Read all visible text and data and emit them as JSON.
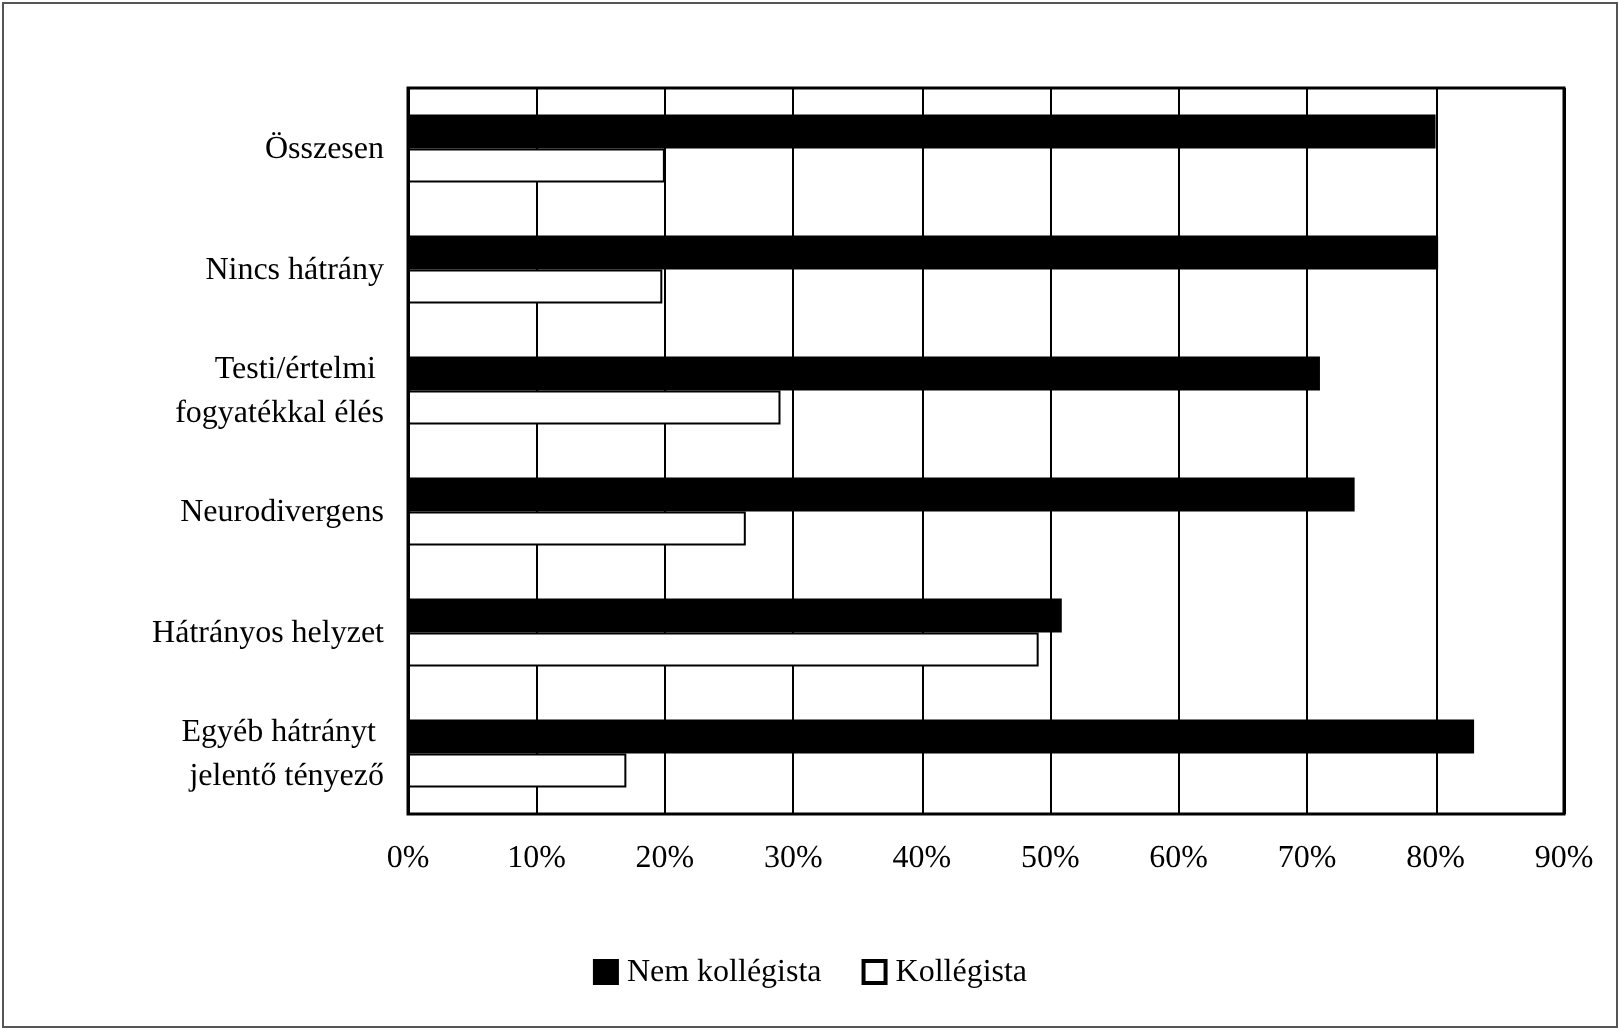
{
  "chart_data": {
    "type": "bar",
    "orientation": "horizontal",
    "categories": [
      "Összesen",
      "Nincs hátrány",
      "Testi/értelmi fogyatékkal élés",
      "Neurodivergens",
      "Hátrányos helyzet",
      "Egyéb hátrányt jelentő tényező"
    ],
    "series": [
      {
        "name": "Nem kollégista",
        "color": "#000000",
        "values": [
          80,
          80.2,
          71,
          73.7,
          50.9,
          83
        ]
      },
      {
        "name": "Kollégista",
        "color": "#ffffff",
        "values": [
          20,
          19.8,
          29,
          26.3,
          49.1,
          17
        ]
      }
    ],
    "xlim": [
      0,
      90
    ],
    "xticks": [
      {
        "value": 0,
        "label": "0%"
      },
      {
        "value": 10,
        "label": "10%"
      },
      {
        "value": 20,
        "label": "20%"
      },
      {
        "value": 30,
        "label": "30%"
      },
      {
        "value": 40,
        "label": "40%"
      },
      {
        "value": 50,
        "label": "50%"
      },
      {
        "value": 60,
        "label": "60%"
      },
      {
        "value": 70,
        "label": "70%"
      },
      {
        "value": 80,
        "label": "80%"
      },
      {
        "value": 90,
        "label": "90%"
      }
    ],
    "grid": "x",
    "legend": "bottom"
  }
}
